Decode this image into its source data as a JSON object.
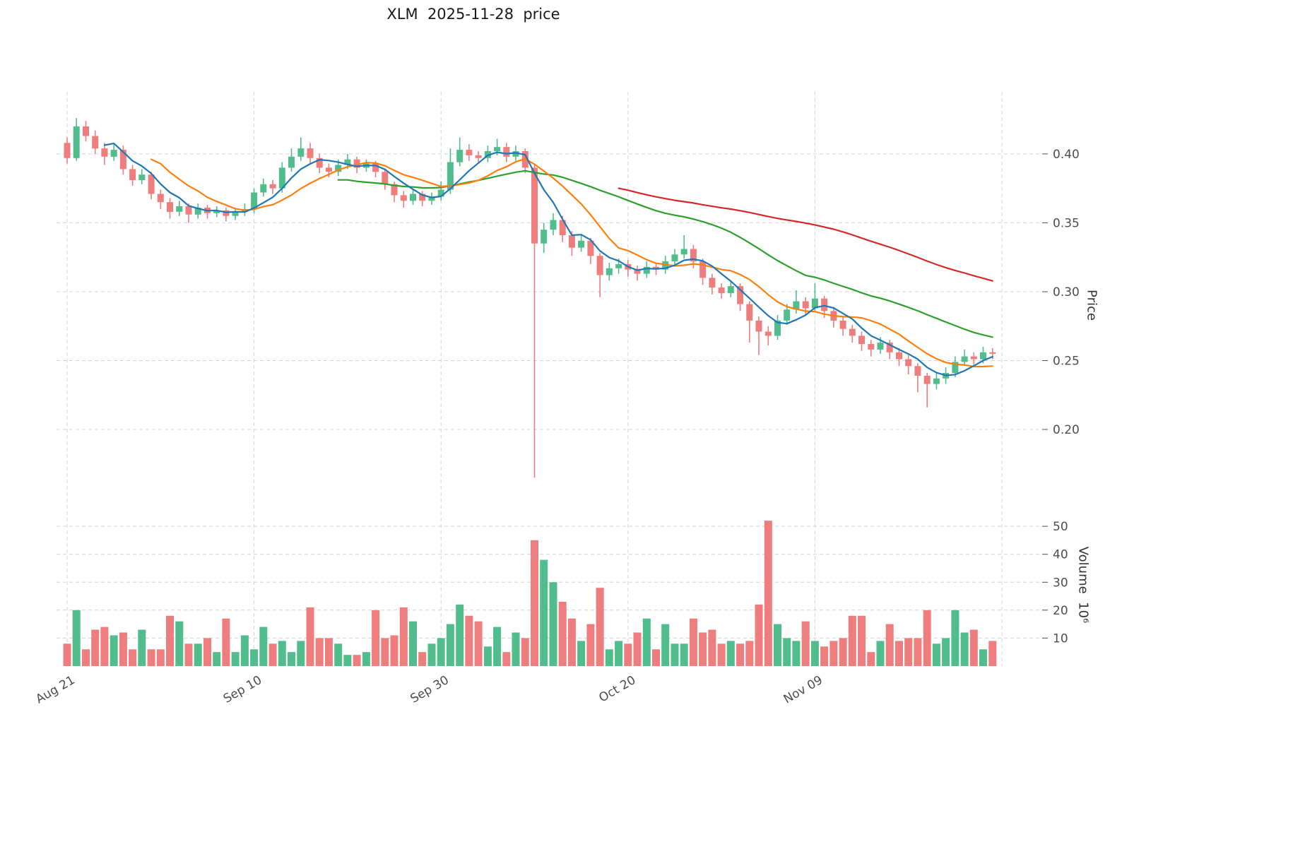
{
  "title": "XLM  2025-11-28  price",
  "axes": {
    "price_label": "Price",
    "volume_label": "Volume  10⁶",
    "price_ticks": [
      "0.40",
      "0.35",
      "0.30",
      "0.25",
      "0.20"
    ],
    "price_tick_values": [
      0.4,
      0.35,
      0.3,
      0.25,
      0.2
    ],
    "volume_ticks": [
      "10",
      "20",
      "30",
      "40",
      "50"
    ],
    "volume_tick_values": [
      10,
      20,
      30,
      40,
      50
    ],
    "x_ticks": [
      {
        "label": "Aug 21",
        "index": 0
      },
      {
        "label": "Sep 10",
        "index": 20
      },
      {
        "label": "Sep 30",
        "index": 40
      },
      {
        "label": "Oct 20",
        "index": 60
      },
      {
        "label": "Nov 09",
        "index": 80
      }
    ],
    "x_grid_extra_index": 100
  },
  "chart_data": {
    "type": "candlestick",
    "title": "XLM  2025-11-28  price",
    "ylabel": "Price",
    "ylabel2": "Volume  10⁶",
    "grid": true,
    "ylim_price": [
      0.1569,
      0.4451
    ],
    "ylim_volume": [
      0,
      57.6
    ],
    "indicators": [
      {
        "name": "MA5",
        "window": 5,
        "color": "#1f77b4"
      },
      {
        "name": "MA10",
        "window": 10,
        "color": "#ff7f0e"
      },
      {
        "name": "MA30",
        "window": 30,
        "color": "#2ca02c"
      },
      {
        "name": "MA60",
        "window": 60,
        "color": "#d62728"
      }
    ],
    "colors": {
      "up": "#52bd8c",
      "down": "#ee7d7d",
      "grid": "#d4d4d4",
      "tick_text": "#4d4d4d"
    },
    "dates": [
      "2025-08-21",
      "2025-08-22",
      "2025-08-23",
      "2025-08-24",
      "2025-08-25",
      "2025-08-26",
      "2025-08-27",
      "2025-08-28",
      "2025-08-29",
      "2025-08-30",
      "2025-08-31",
      "2025-09-01",
      "2025-09-02",
      "2025-09-03",
      "2025-09-04",
      "2025-09-05",
      "2025-09-06",
      "2025-09-07",
      "2025-09-08",
      "2025-09-09",
      "2025-09-10",
      "2025-09-11",
      "2025-09-12",
      "2025-09-13",
      "2025-09-14",
      "2025-09-15",
      "2025-09-16",
      "2025-09-17",
      "2025-09-18",
      "2025-09-19",
      "2025-09-20",
      "2025-09-21",
      "2025-09-22",
      "2025-09-23",
      "2025-09-24",
      "2025-09-25",
      "2025-09-26",
      "2025-09-27",
      "2025-09-28",
      "2025-09-29",
      "2025-09-30",
      "2025-10-01",
      "2025-10-02",
      "2025-10-03",
      "2025-10-04",
      "2025-10-05",
      "2025-10-06",
      "2025-10-07",
      "2025-10-08",
      "2025-10-09",
      "2025-10-10",
      "2025-10-11",
      "2025-10-12",
      "2025-10-13",
      "2025-10-14",
      "2025-10-15",
      "2025-10-16",
      "2025-10-17",
      "2025-10-18",
      "2025-10-19",
      "2025-10-20",
      "2025-10-21",
      "2025-10-22",
      "2025-10-23",
      "2025-10-24",
      "2025-10-25",
      "2025-10-26",
      "2025-10-27",
      "2025-10-28",
      "2025-10-29",
      "2025-10-30",
      "2025-10-31",
      "2025-11-01",
      "2025-11-02",
      "2025-11-03",
      "2025-11-04",
      "2025-11-05",
      "2025-11-06",
      "2025-11-07",
      "2025-11-08",
      "2025-11-09",
      "2025-11-10",
      "2025-11-11",
      "2025-11-12",
      "2025-11-13",
      "2025-11-14",
      "2025-11-15",
      "2025-11-16",
      "2025-11-17",
      "2025-11-18",
      "2025-11-19",
      "2025-11-20",
      "2025-11-21",
      "2025-11-22",
      "2025-11-23",
      "2025-11-24",
      "2025-11-25",
      "2025-11-26",
      "2025-11-27",
      "2025-11-28"
    ],
    "open": [
      0.408,
      0.397,
      0.42,
      0.413,
      0.404,
      0.398,
      0.403,
      0.389,
      0.381,
      0.385,
      0.371,
      0.365,
      0.358,
      0.362,
      0.356,
      0.361,
      0.357,
      0.359,
      0.355,
      0.358,
      0.36,
      0.372,
      0.378,
      0.375,
      0.39,
      0.398,
      0.404,
      0.397,
      0.39,
      0.387,
      0.392,
      0.396,
      0.39,
      0.393,
      0.387,
      0.378,
      0.37,
      0.366,
      0.371,
      0.366,
      0.369,
      0.374,
      0.394,
      0.403,
      0.399,
      0.397,
      0.402,
      0.405,
      0.398,
      0.402,
      0.39,
      0.335,
      0.345,
      0.352,
      0.341,
      0.332,
      0.337,
      0.326,
      0.312,
      0.317,
      0.32,
      0.316,
      0.313,
      0.318,
      0.316,
      0.322,
      0.327,
      0.331,
      0.322,
      0.31,
      0.303,
      0.299,
      0.304,
      0.291,
      0.279,
      0.271,
      0.268,
      0.279,
      0.287,
      0.293,
      0.288,
      0.295,
      0.286,
      0.279,
      0.273,
      0.268,
      0.262,
      0.258,
      0.263,
      0.256,
      0.251,
      0.246,
      0.239,
      0.233,
      0.237,
      0.241,
      0.249,
      0.253,
      0.251,
      0.256
    ],
    "high": [
      0.412,
      0.426,
      0.424,
      0.417,
      0.408,
      0.407,
      0.406,
      0.392,
      0.389,
      0.387,
      0.374,
      0.368,
      0.366,
      0.364,
      0.364,
      0.363,
      0.362,
      0.361,
      0.361,
      0.364,
      0.375,
      0.382,
      0.381,
      0.394,
      0.404,
      0.412,
      0.408,
      0.4,
      0.393,
      0.396,
      0.4,
      0.398,
      0.396,
      0.395,
      0.389,
      0.38,
      0.373,
      0.374,
      0.373,
      0.372,
      0.38,
      0.404,
      0.412,
      0.407,
      0.402,
      0.406,
      0.411,
      0.408,
      0.406,
      0.404,
      0.392,
      0.35,
      0.357,
      0.355,
      0.344,
      0.341,
      0.339,
      0.328,
      0.321,
      0.324,
      0.323,
      0.319,
      0.322,
      0.321,
      0.326,
      0.331,
      0.341,
      0.334,
      0.324,
      0.313,
      0.306,
      0.308,
      0.306,
      0.293,
      0.282,
      0.275,
      0.283,
      0.291,
      0.301,
      0.296,
      0.306,
      0.297,
      0.289,
      0.282,
      0.276,
      0.271,
      0.265,
      0.267,
      0.265,
      0.259,
      0.254,
      0.248,
      0.241,
      0.241,
      0.245,
      0.253,
      0.258,
      0.256,
      0.26,
      0.259
    ],
    "low": [
      0.393,
      0.395,
      0.409,
      0.4,
      0.392,
      0.395,
      0.385,
      0.377,
      0.378,
      0.367,
      0.36,
      0.353,
      0.355,
      0.35,
      0.353,
      0.353,
      0.354,
      0.351,
      0.352,
      0.355,
      0.357,
      0.369,
      0.371,
      0.372,
      0.387,
      0.395,
      0.393,
      0.386,
      0.383,
      0.384,
      0.389,
      0.386,
      0.387,
      0.383,
      0.374,
      0.365,
      0.361,
      0.363,
      0.362,
      0.363,
      0.366,
      0.371,
      0.391,
      0.395,
      0.393,
      0.394,
      0.399,
      0.394,
      0.395,
      0.386,
      0.165,
      0.328,
      0.341,
      0.336,
      0.326,
      0.329,
      0.32,
      0.296,
      0.308,
      0.313,
      0.311,
      0.308,
      0.31,
      0.312,
      0.313,
      0.319,
      0.324,
      0.317,
      0.305,
      0.298,
      0.295,
      0.296,
      0.286,
      0.263,
      0.254,
      0.261,
      0.265,
      0.276,
      0.284,
      0.283,
      0.285,
      0.281,
      0.274,
      0.268,
      0.263,
      0.257,
      0.253,
      0.255,
      0.251,
      0.246,
      0.24,
      0.227,
      0.216,
      0.229,
      0.233,
      0.238,
      0.246,
      0.247,
      0.248,
      0.251
    ],
    "close": [
      0.397,
      0.42,
      0.413,
      0.404,
      0.398,
      0.403,
      0.389,
      0.381,
      0.385,
      0.371,
      0.365,
      0.358,
      0.362,
      0.356,
      0.361,
      0.357,
      0.359,
      0.355,
      0.358,
      0.36,
      0.372,
      0.378,
      0.375,
      0.39,
      0.398,
      0.404,
      0.397,
      0.39,
      0.387,
      0.392,
      0.396,
      0.39,
      0.393,
      0.387,
      0.378,
      0.37,
      0.366,
      0.371,
      0.366,
      0.369,
      0.374,
      0.394,
      0.403,
      0.399,
      0.397,
      0.402,
      0.405,
      0.398,
      0.402,
      0.39,
      0.335,
      0.345,
      0.352,
      0.341,
      0.332,
      0.337,
      0.326,
      0.312,
      0.317,
      0.32,
      0.316,
      0.313,
      0.318,
      0.316,
      0.322,
      0.327,
      0.331,
      0.322,
      0.31,
      0.303,
      0.299,
      0.304,
      0.291,
      0.279,
      0.271,
      0.268,
      0.279,
      0.287,
      0.293,
      0.288,
      0.295,
      0.286,
      0.279,
      0.273,
      0.268,
      0.262,
      0.258,
      0.263,
      0.256,
      0.251,
      0.246,
      0.239,
      0.233,
      0.237,
      0.241,
      0.249,
      0.253,
      0.251,
      0.256,
      0.255
    ],
    "volume": [
      8,
      20,
      6,
      13,
      14,
      11,
      12,
      6,
      13,
      6,
      6,
      18,
      16,
      8,
      8,
      10,
      5,
      17,
      5,
      11,
      6,
      14,
      8,
      9,
      5,
      9,
      21,
      10,
      10,
      8,
      4,
      4,
      5,
      20,
      10,
      11,
      21,
      16,
      5,
      8,
      10,
      15,
      22,
      18,
      16,
      7,
      14,
      5,
      12,
      10,
      45,
      38,
      30,
      23,
      17,
      9,
      15,
      28,
      6,
      9,
      8,
      12,
      17,
      6,
      15,
      8,
      8,
      17,
      12,
      13,
      8,
      9,
      8,
      9,
      22,
      52,
      15,
      10,
      9,
      16,
      9,
      7,
      9,
      10,
      18,
      18,
      5,
      9,
      15,
      9,
      10,
      10,
      20,
      8,
      10,
      20,
      12,
      13,
      6,
      9
    ]
  }
}
